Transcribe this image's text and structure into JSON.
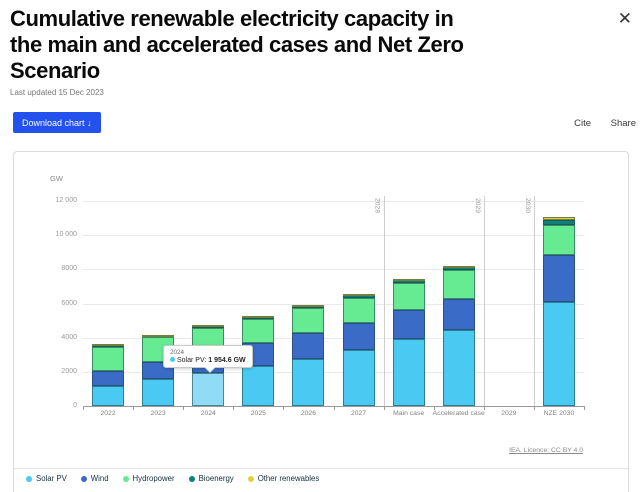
{
  "header": {
    "title": "Cumulative renewable electricity capacity in the main and accelerated cases and Net Zero Scenario",
    "last_updated": "Last updated 15 Dec 2023",
    "close_icon": "✕"
  },
  "toolbar": {
    "download_label": "Download chart ↓",
    "cite_label": "Cite",
    "share_label": "Share"
  },
  "chart_data": {
    "type": "bar",
    "stacked": true,
    "title": "Cumulative renewable electricity capacity in the main and accelerated cases and Net Zero Scenario",
    "unit_label": "GW",
    "ylabel": "GW",
    "xlabel": "",
    "ylim": [
      0,
      12000
    ],
    "grid": true,
    "legend_position": "bottom",
    "categories": [
      "2022",
      "2023",
      "2024",
      "2025",
      "2026",
      "2027",
      "Main case",
      "Accelerated case",
      "2029",
      "NZE 2030"
    ],
    "series": [
      {
        "name": "Solar PV",
        "color": "#4ac9f2",
        "values": [
          1145,
          1590,
          1954.6,
          2340,
          2750,
          3260,
          3900,
          4430,
          null,
          6100
        ]
      },
      {
        "name": "Wind",
        "color": "#3a6bc6",
        "values": [
          900,
          1010,
          1160,
          1330,
          1510,
          1620,
          1700,
          1810,
          null,
          2750
        ]
      },
      {
        "name": "Hydropower",
        "color": "#66eb93",
        "values": [
          1400,
          1410,
          1425,
          1440,
          1455,
          1470,
          1580,
          1715,
          null,
          1750
        ]
      },
      {
        "name": "Bioenergy",
        "color": "#0e8077",
        "values": [
          150,
          155,
          160,
          165,
          170,
          175,
          230,
          235,
          null,
          290
        ]
      },
      {
        "name": "Other renewables",
        "color": "#e6cf3a",
        "values": [
          15,
          15,
          15,
          15,
          20,
          20,
          25,
          25,
          null,
          180
        ]
      }
    ],
    "yticks": [
      {
        "value": 0,
        "label": "0"
      },
      {
        "value": 2000,
        "label": "2000"
      },
      {
        "value": 4000,
        "label": "4000"
      },
      {
        "value": 6000,
        "label": "6000"
      },
      {
        "value": 8000,
        "label": "8000"
      },
      {
        "value": 10000,
        "label": "10 000"
      },
      {
        "value": 12000,
        "label": "12 000"
      }
    ],
    "ref_lines": [
      {
        "x_index": 6,
        "label": "2028"
      },
      {
        "x_index": 8,
        "label": "2029"
      },
      {
        "x_index": 9,
        "label": "2030"
      }
    ],
    "highlight": {
      "category": "2024",
      "series": "Solar PV",
      "color": "#90dcf7"
    },
    "tooltip": {
      "title": "2024",
      "series": "Solar PV",
      "value": "1 954.6 GW"
    },
    "source": "IEA. Licence: CC BY 4.0"
  }
}
